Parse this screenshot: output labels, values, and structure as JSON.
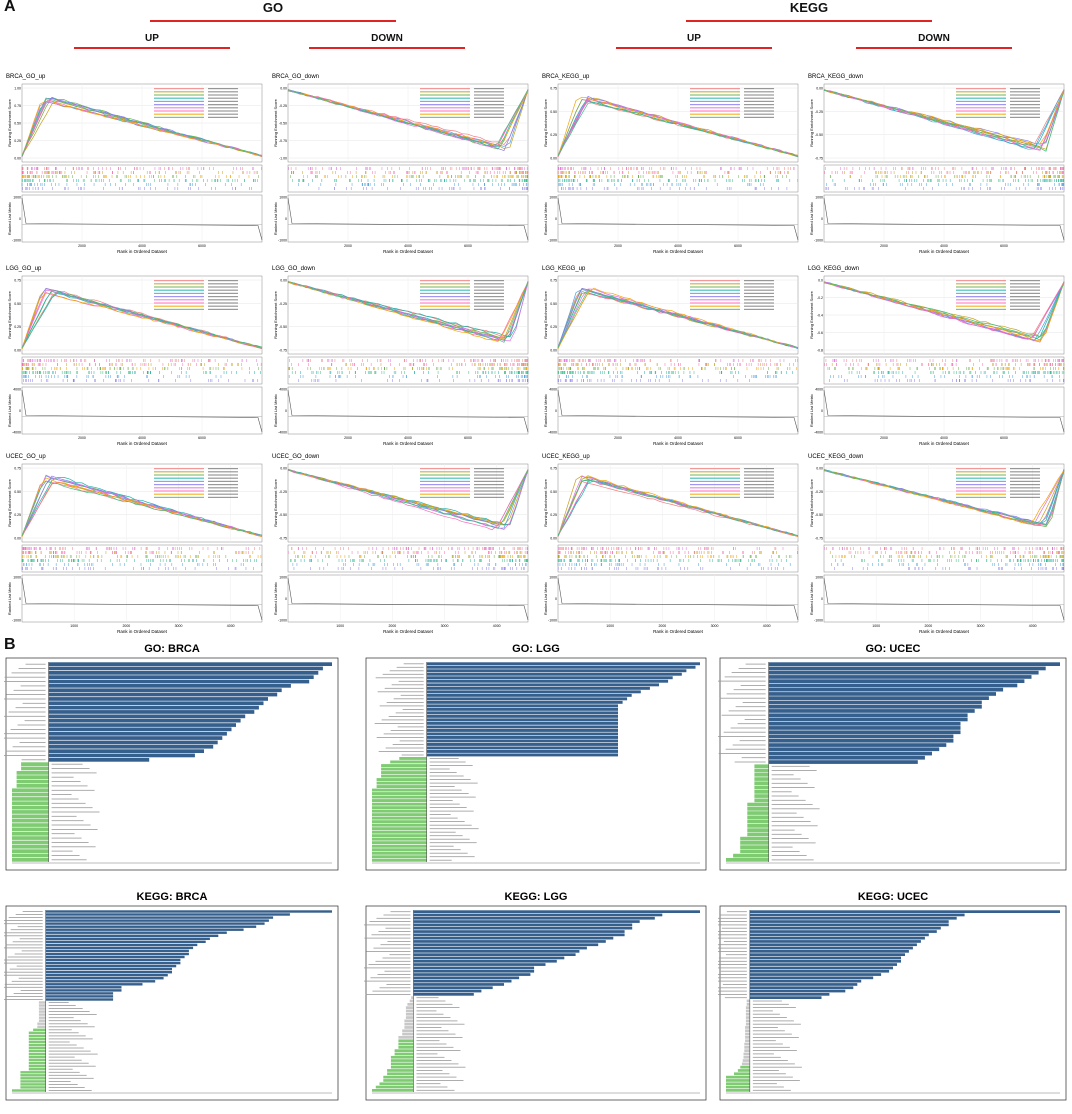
{
  "panel_a": {
    "letter": "A",
    "headers": {
      "go": "GO",
      "kegg": "KEGG",
      "up": "UP",
      "down": "DOWN"
    },
    "y_label_top": "Running Enrichment Score",
    "y_label_bottom": "Ranked List Metric",
    "x_label": "Rank in Ordered Dataset"
  },
  "panel_b": {
    "letter": "B"
  },
  "colors": {
    "go_red": "#e02424",
    "bar_up": "#355f8c",
    "bar_down": "#7ecb72",
    "bar_ns": "#c8c8c8",
    "series": [
      "#f08080",
      "#c8a020",
      "#6ab04c",
      "#20b2aa",
      "#4aa0e0",
      "#8a7cf0",
      "#e070e0",
      "#ff69b4",
      "#f4a300",
      "#40c080"
    ]
  },
  "chart_data": [
    {
      "type": "line",
      "title": "BRCA_GO_up",
      "dir": "up",
      "xmax": 8000,
      "xticks": [
        2000,
        4000,
        6000
      ],
      "yticks": [
        "1.00",
        "0.75",
        "0.50",
        "0.25",
        "0.00"
      ],
      "y2ticks": [
        "1000",
        "0",
        "-1000"
      ],
      "nseries": 10
    },
    {
      "type": "line",
      "title": "BRCA_GO_down",
      "dir": "down",
      "xmax": 8000,
      "xticks": [
        2000,
        4000,
        6000
      ],
      "yticks": [
        "0.00",
        "-0.25",
        "-0.50",
        "-0.75",
        "-1.00"
      ],
      "y2ticks": [
        "1000",
        "0",
        "-1000"
      ],
      "nseries": 10
    },
    {
      "type": "line",
      "title": "BRCA_KEGG_up",
      "dir": "up",
      "xmax": 8000,
      "xticks": [
        2000,
        4000,
        6000
      ],
      "yticks": [
        "0.75",
        "0.50",
        "0.25",
        "0.00"
      ],
      "y2ticks": [
        "1000",
        "0",
        "-1000"
      ],
      "nseries": 10
    },
    {
      "type": "line",
      "title": "BRCA_KEGG_down",
      "dir": "down",
      "xmax": 8000,
      "xticks": [
        2000,
        4000,
        6000
      ],
      "yticks": [
        "0.00",
        "-0.25",
        "-0.50",
        "-0.75"
      ],
      "y2ticks": [
        "1000",
        "0",
        "-1000"
      ],
      "nseries": 10
    },
    {
      "type": "line",
      "title": "LGG_GO_up",
      "dir": "up",
      "xmax": 8000,
      "xticks": [
        2000,
        4000,
        6000
      ],
      "yticks": [
        "0.75",
        "0.50",
        "0.25",
        "0.00"
      ],
      "y2ticks": [
        "4000",
        "0",
        "-4000"
      ],
      "nseries": 10
    },
    {
      "type": "line",
      "title": "LGG_GO_down",
      "dir": "down",
      "xmax": 8000,
      "xticks": [
        2000,
        4000,
        6000
      ],
      "yticks": [
        "0.00",
        "-0.25",
        "-0.50",
        "-0.75"
      ],
      "y2ticks": [
        "4000",
        "0",
        "-4000"
      ],
      "nseries": 10
    },
    {
      "type": "line",
      "title": "LGG_KEGG_up",
      "dir": "up",
      "xmax": 8000,
      "xticks": [
        2000,
        4000,
        6000
      ],
      "yticks": [
        "0.75",
        "0.50",
        "0.25",
        "0.00"
      ],
      "y2ticks": [
        "4000",
        "0",
        "-4000"
      ],
      "nseries": 10
    },
    {
      "type": "line",
      "title": "LGG_KEGG_down",
      "dir": "down",
      "xmax": 8000,
      "xticks": [
        2000,
        4000,
        6000
      ],
      "yticks": [
        "0.0",
        "-0.2",
        "-0.4",
        "-0.6",
        "-0.8"
      ],
      "y2ticks": [
        "4000",
        "0",
        "-4000"
      ],
      "nseries": 10
    },
    {
      "type": "line",
      "title": "UCEC_GO_up",
      "dir": "up",
      "xmax": 4600,
      "xticks": [
        1000,
        2000,
        3000,
        4000
      ],
      "yticks": [
        "0.75",
        "0.50",
        "0.25",
        "0.00"
      ],
      "y2ticks": [
        "1000",
        "0",
        "-1000"
      ],
      "nseries": 10
    },
    {
      "type": "line",
      "title": "UCEC_GO_down",
      "dir": "down",
      "xmax": 4600,
      "xticks": [
        1000,
        2000,
        3000,
        4000
      ],
      "yticks": [
        "0.00",
        "-0.25",
        "-0.50",
        "-0.75"
      ],
      "y2ticks": [
        "1000",
        "0",
        "-1000"
      ],
      "nseries": 10
    },
    {
      "type": "line",
      "title": "UCEC_KEGG_up",
      "dir": "up",
      "xmax": 4600,
      "xticks": [
        1000,
        2000,
        3000,
        4000
      ],
      "yticks": [
        "0.75",
        "0.50",
        "0.25",
        "0.00"
      ],
      "y2ticks": [
        "1000",
        "0",
        "-1000"
      ],
      "nseries": 10
    },
    {
      "type": "line",
      "title": "UCEC_KEGG_down",
      "dir": "down",
      "xmax": 4600,
      "xticks": [
        1000,
        2000,
        3000,
        4000
      ],
      "yticks": [
        "0.00",
        "-0.25",
        "-0.50",
        "-0.75"
      ],
      "y2ticks": [
        "1000",
        "0",
        "-1000"
      ],
      "nseries": 10
    },
    {
      "type": "bar",
      "title": "GO: BRCA",
      "values": [
        31,
        30,
        29.5,
        29,
        28.5,
        26.5,
        25.5,
        25,
        24,
        23.5,
        23,
        22.5,
        21.5,
        21,
        20.5,
        20,
        19.5,
        19,
        18.5,
        18,
        17,
        16,
        11,
        -3,
        -3,
        -3.5,
        -3.5,
        -3.5,
        -3.5,
        -4,
        -4,
        -4,
        -4,
        -4,
        -4,
        -4,
        -4,
        -4,
        -4,
        -4,
        -4,
        -4,
        -4,
        -4,
        -4,
        -4
      ],
      "ns_count": 0
    },
    {
      "type": "bar",
      "title": "GO: LGG",
      "values": [
        30,
        29.5,
        28.5,
        28,
        27,
        26.5,
        25.5,
        24.5,
        23.5,
        22.5,
        22,
        21.5,
        21,
        21,
        21,
        21,
        21,
        21,
        21,
        21,
        21,
        21,
        21,
        21,
        21,
        21,
        21,
        -3,
        -4,
        -5,
        -5,
        -5,
        -5,
        -5.5,
        -5.5,
        -5.5,
        -6,
        -6,
        -6,
        -6,
        -6,
        -6,
        -6,
        -6,
        -6,
        -6,
        -6,
        -6,
        -6,
        -6,
        -6,
        -6,
        -6,
        -6,
        -6,
        -6,
        -6
      ],
      "ns_count": 0
    },
    {
      "type": "bar",
      "title": "GO: UCEC",
      "values": [
        41,
        39,
        38,
        37,
        36,
        35,
        33,
        32,
        31,
        30,
        30,
        29,
        28,
        28,
        27,
        27,
        27,
        26,
        26,
        25,
        24,
        23,
        22,
        21,
        -2,
        -2,
        -2,
        -2,
        -2,
        -2,
        -2,
        -2,
        -2,
        -3,
        -3,
        -3,
        -3,
        -3,
        -3,
        -3,
        -3,
        -4,
        -4,
        -4,
        -4,
        -5,
        -6
      ],
      "ns_count": 0
    },
    {
      "type": "bar",
      "title": "KEGG: BRCA",
      "values": [
        34,
        29,
        27,
        26.5,
        26,
        25,
        23.5,
        21.5,
        20.5,
        19.5,
        19,
        18,
        17.5,
        17,
        17,
        16.5,
        16,
        16,
        15.5,
        15,
        15,
        14.5,
        14,
        13,
        11.5,
        9,
        9,
        8,
        8,
        8,
        -0.8,
        -0.8,
        -0.8,
        -0.8,
        -0.8,
        -0.8,
        -0.8,
        -1,
        -1,
        -1.5,
        -2,
        -2,
        -2,
        -2,
        -2,
        -2,
        -2,
        -2,
        -2,
        -2,
        -2,
        -2,
        -2,
        -3,
        -3,
        -3,
        -3,
        -3,
        -3,
        -4
      ],
      "ns_count": 9
    },
    {
      "type": "bar",
      "title": "KEGG: LGG",
      "values": [
        38,
        33,
        32,
        30,
        29,
        29,
        28,
        28,
        26.5,
        25.5,
        24.5,
        23,
        22,
        21.5,
        20,
        19,
        17.5,
        16,
        16,
        15.5,
        14,
        13,
        12,
        10.5,
        9,
        8,
        -0.3,
        -0.5,
        -0.8,
        -1,
        -1,
        -1,
        -1,
        -1.2,
        -1.2,
        -1.2,
        -1.5,
        -1.5,
        -2,
        -2,
        -2,
        -2,
        -2.5,
        -2.5,
        -3,
        -3,
        -3,
        -3,
        -3.5,
        -3.5,
        -4,
        -4,
        -4.5,
        -5,
        -5.5
      ],
      "ns_count": 13
    },
    {
      "type": "bar",
      "title": "KEGG: UCEC",
      "values": [
        39,
        27,
        26,
        25,
        25,
        24,
        23.5,
        22.5,
        22,
        21.5,
        21,
        20.5,
        20,
        19.5,
        19,
        19,
        18.5,
        18,
        17.5,
        16.5,
        15.5,
        14,
        13.5,
        13,
        12,
        10,
        9,
        -0.4,
        -0.4,
        -0.5,
        -0.5,
        -0.5,
        -0.5,
        -0.5,
        -0.5,
        -0.6,
        -0.6,
        -0.6,
        -0.6,
        -0.6,
        -0.7,
        -0.7,
        -0.7,
        -0.8,
        -0.8,
        -0.9,
        -1,
        -1.2,
        -1.5,
        -2,
        -3,
        -3,
        -3,
        -3,
        -3
      ],
      "ns_count": 20
    }
  ]
}
